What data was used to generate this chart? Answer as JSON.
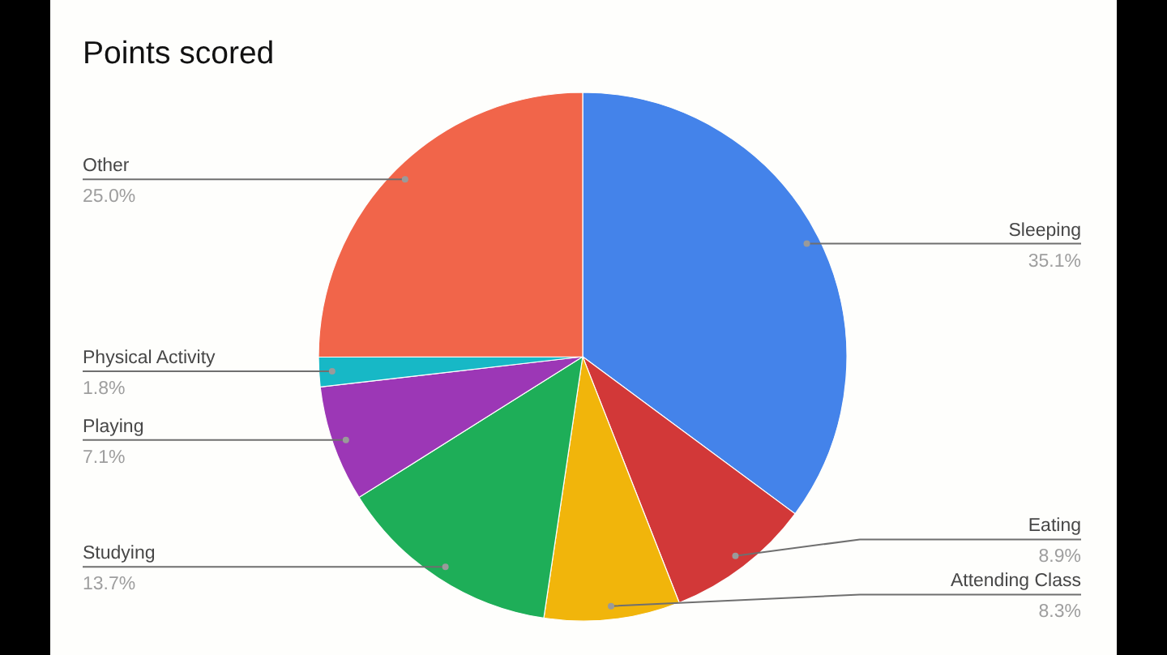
{
  "chart_data": {
    "type": "pie",
    "title": "Points scored",
    "categories": [
      "Sleeping",
      "Eating",
      "Attending Class",
      "Studying",
      "Playing",
      "Physical Activity",
      "Other"
    ],
    "values": [
      35.1,
      8.9,
      8.3,
      13.7,
      7.1,
      1.8,
      25.0
    ],
    "colors": [
      "#4483ea",
      "#d23838",
      "#f1b50b",
      "#1eae58",
      "#9c37b6",
      "#17b8c6",
      "#f1654a"
    ],
    "value_labels": [
      "35.1%",
      "8.9%",
      "8.3%",
      "13.7%",
      "7.1%",
      "1.8%",
      "25.0%"
    ]
  }
}
